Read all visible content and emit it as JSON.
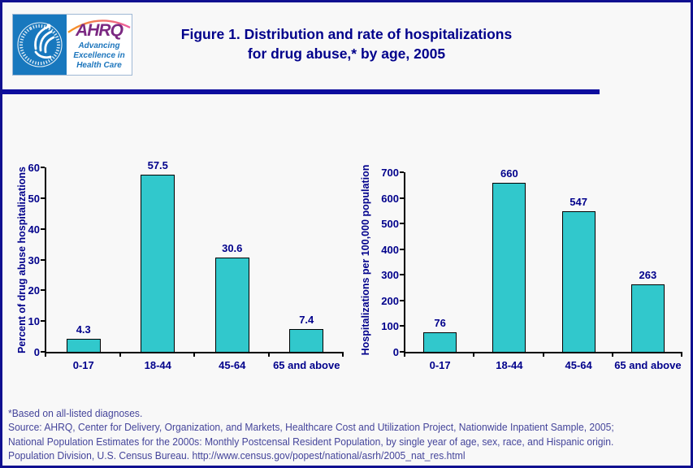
{
  "page": {
    "background": "#f8f8f8",
    "border_color": "#101090",
    "divider_color": "#0D0D9E"
  },
  "logo": {
    "acronym": "AHRQ",
    "tagline_lines": [
      "Advancing",
      "Excellence in",
      "Health Care"
    ],
    "seal": "hhs-eagle-seal",
    "colors": {
      "seal_blue": "#1878BE",
      "ahrq_purple": "#7B2982",
      "tagline_blue": "#1C75BC",
      "arc_orange": "#F7941D",
      "arc_pink": "#EC5BA0"
    }
  },
  "title": {
    "line1": "Figure 1. Distribution and rate of hospitalizations",
    "line2": "for drug abuse,* by age, 2005",
    "color": "#00008B"
  },
  "chart_data": [
    {
      "type": "bar",
      "name": "percent-of-hospitalizations",
      "categories": [
        "0-17",
        "18-44",
        "45-64",
        "65 and above"
      ],
      "values": [
        4.3,
        57.5,
        30.6,
        7.4
      ],
      "data_labels": [
        "4.3",
        "57.5",
        "30.6",
        "7.4"
      ],
      "xlabel": "",
      "ylabel": "Percent of drug abuse hospitalizations",
      "ylim": [
        0,
        60
      ],
      "yticks": [
        0,
        10,
        20,
        30,
        40,
        50,
        60
      ],
      "grid": false,
      "legend": "none",
      "bar_fill": "#31C8CC",
      "bar_border": "#000000",
      "text_color": "#00008B"
    },
    {
      "type": "bar",
      "name": "rate-per-100000",
      "categories": [
        "0-17",
        "18-44",
        "45-64",
        "65 and above"
      ],
      "values": [
        76,
        660,
        547,
        263
      ],
      "data_labels": [
        "76",
        "660",
        "547",
        "263"
      ],
      "xlabel": "",
      "ylabel": "Hospitalizations per 100,000 population",
      "ylim": [
        0,
        700
      ],
      "yticks": [
        0,
        100,
        200,
        300,
        400,
        500,
        600,
        700
      ],
      "grid": false,
      "legend": "none",
      "bar_fill": "#31C8CC",
      "bar_border": "#000000",
      "text_color": "#00008B"
    }
  ],
  "footnotes": {
    "lines": [
      "*Based on all-listed diagnoses.",
      "Source: AHRQ, Center for Delivery, Organization, and Markets, Healthcare Cost and Utilization Project, Nationwide Inpatient Sample, 2005;",
      "National Population Estimates for the 2000s: Monthly Postcensal Resident Population, by single year of age, sex, race, and Hispanic origin.",
      "Population Division, U.S. Census Bureau. http://www.census.gov/popest/national/asrh/2005_nat_res.html"
    ],
    "color": "#44449A"
  }
}
